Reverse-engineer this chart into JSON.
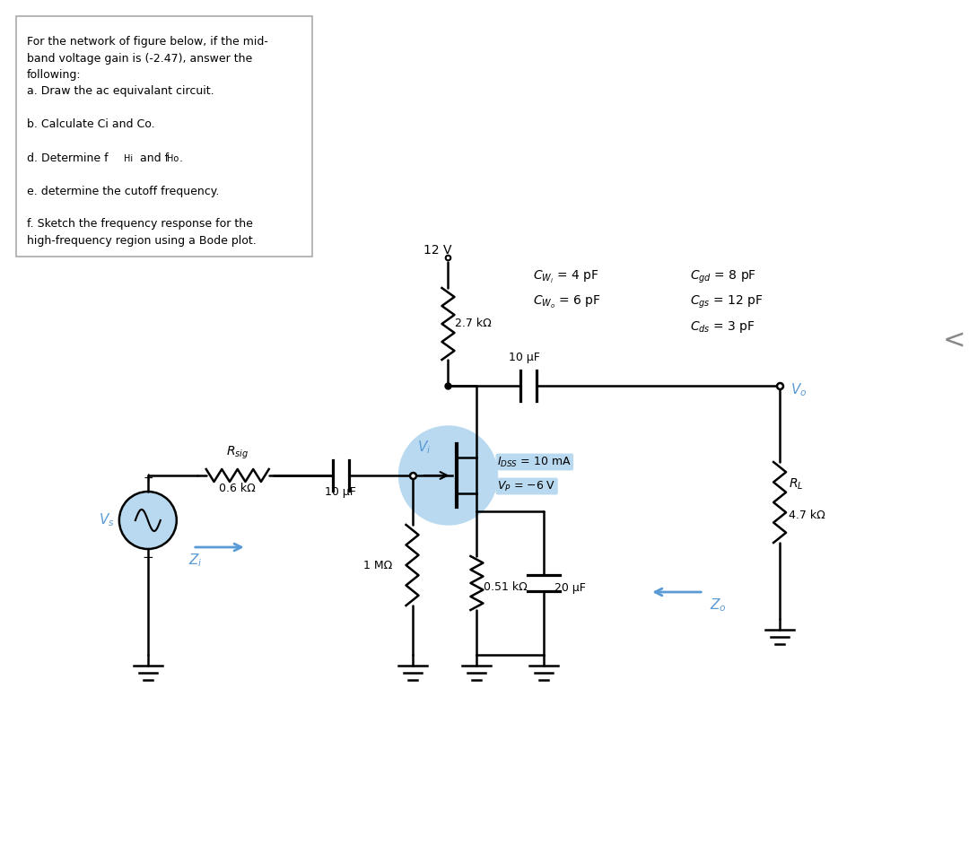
{
  "bg_color": "#ffffff",
  "text_color": "#000000",
  "blue_color": "#5b9bd5",
  "light_blue": "#b8d9f0",
  "vdd": "12 V",
  "rd": "2.7 kΩ",
  "rsig_val": "0.6 kΩ",
  "rg": "1 MΩ",
  "rs": "0.51 kΩ",
  "rl": "4.7 kΩ",
  "c_in": "10 μF",
  "c_out": "10 μF",
  "c_s": "20 μF"
}
